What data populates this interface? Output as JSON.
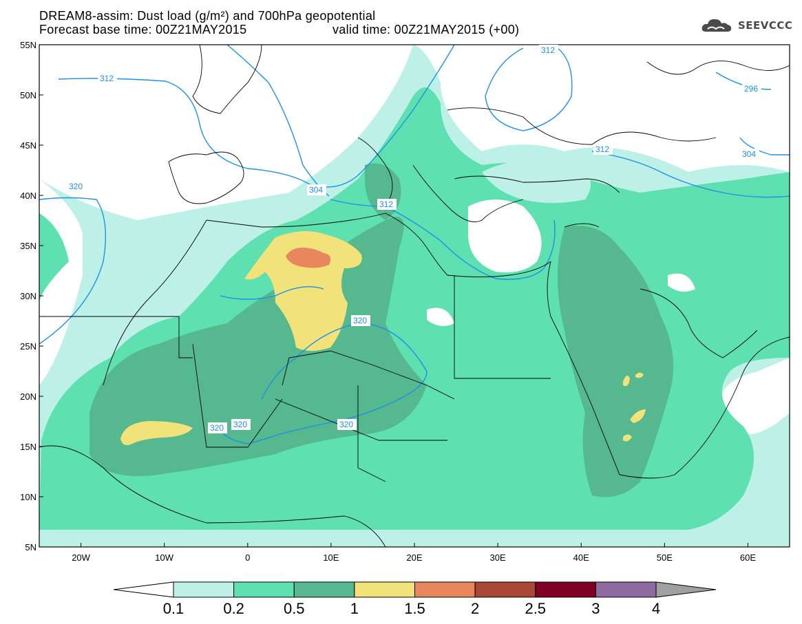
{
  "title": {
    "line1": "DREAM8-assim: Dust load (g/m²) and 700hPa geopotential",
    "line2a": "Forecast base time: 00Z21MAY2015",
    "line2b": "valid time: 00Z21MAY2015 (+00)"
  },
  "logo": {
    "text": "SEEVCCC",
    "icon": "cloud-logo-icon"
  },
  "map": {
    "lon_range": [
      -25,
      65
    ],
    "lat_range": [
      5,
      55
    ],
    "lon_ticks": [
      "20W",
      "10W",
      "0",
      "10E",
      "20E",
      "30E",
      "40E",
      "50E",
      "60E"
    ],
    "lat_ticks": [
      "55N",
      "50N",
      "45N",
      "40N",
      "35N",
      "30N",
      "25N",
      "20N",
      "15N",
      "10N",
      "5N"
    ],
    "contour_labels": [
      "312",
      "312",
      "312",
      "312",
      "296",
      "304",
      "304",
      "320",
      "320",
      "320",
      "320",
      "320"
    ]
  },
  "colorbar": {
    "labels": [
      "0.1",
      "0.2",
      "0.5",
      "1",
      "1.5",
      "2",
      "2.5",
      "3",
      "4"
    ],
    "colors": [
      "#ffffff",
      "#bdf0e6",
      "#5ee0b0",
      "#55b88e",
      "#f2e27a",
      "#e8875e",
      "#a84638",
      "#800025",
      "#8e6aa0",
      "#a0a0a0"
    ]
  }
}
